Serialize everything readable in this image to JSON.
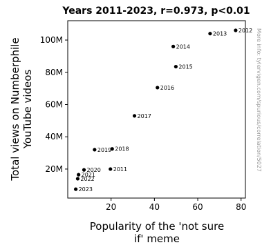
{
  "chart_data": {
    "type": "scatter",
    "title": "Years 2011-2023, r=0.973, p<0.01",
    "xlabel": [
      "Popularity of the 'not sure",
      "if' meme"
    ],
    "ylabel": [
      "Total views on Numberphile",
      "YouTube videos"
    ],
    "side_note": "More info: tylervigen.com/spurious/correlation/5027",
    "xlim": [
      0,
      82
    ],
    "ylim": [
      2000000,
      112000000
    ],
    "x_ticks": [
      20,
      40,
      60,
      80
    ],
    "y_ticks": [
      20000000,
      40000000,
      60000000,
      80000000,
      100000000
    ],
    "y_tick_labels": [
      "20M",
      "40M",
      "60M",
      "80M",
      "100M"
    ],
    "points": [
      {
        "label": "2011",
        "x": 19.7,
        "y": 20000000
      },
      {
        "label": "2012",
        "x": 77.5,
        "y": 106000000
      },
      {
        "label": "2013",
        "x": 65.7,
        "y": 104000000
      },
      {
        "label": "2014",
        "x": 48.7,
        "y": 96000000
      },
      {
        "label": "2015",
        "x": 49.9,
        "y": 83500000
      },
      {
        "label": "2016",
        "x": 41.4,
        "y": 70500000
      },
      {
        "label": "2017",
        "x": 30.8,
        "y": 53000000
      },
      {
        "label": "2018",
        "x": 20.5,
        "y": 32500000
      },
      {
        "label": "2019",
        "x": 12.4,
        "y": 32000000
      },
      {
        "label": "2020",
        "x": 7.5,
        "y": 19500000
      },
      {
        "label": "2021",
        "x": 5.0,
        "y": 16500000
      },
      {
        "label": "2022",
        "x": 4.6,
        "y": 14000000
      },
      {
        "label": "2023",
        "x": 3.7,
        "y": 7500000
      }
    ],
    "grid": false,
    "legend": "none"
  }
}
